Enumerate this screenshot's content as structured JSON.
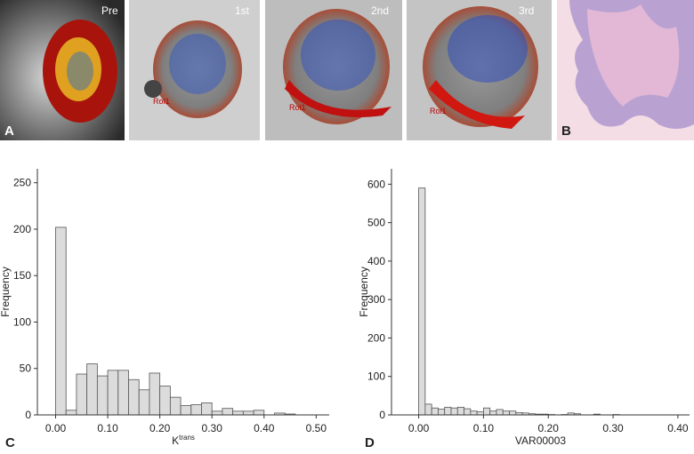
{
  "panels": {
    "a": {
      "letter": "A",
      "slices": [
        "Pre",
        "1st",
        "2nd",
        "3rd"
      ],
      "roi_labels": [
        "Roi1",
        "Roi1",
        "Roi1"
      ]
    },
    "b": {
      "letter": "B"
    }
  },
  "chart_data": [
    {
      "type": "histogram",
      "panel_letter": "C",
      "y_label": "Frequency",
      "x_label": "K",
      "x_label_sup": "trans",
      "color": "#dcdcdc",
      "bins": [
        0.0,
        0.02,
        0.04,
        0.06,
        0.08,
        0.1,
        0.12,
        0.14,
        0.16,
        0.18,
        0.2,
        0.22,
        0.24,
        0.26,
        0.28,
        0.3,
        0.32,
        0.34,
        0.36,
        0.38,
        0.4,
        0.42,
        0.44,
        0.46
      ],
      "values": [
        202,
        5,
        44,
        55,
        42,
        48,
        48,
        38,
        27,
        45,
        31,
        19,
        10,
        11,
        13,
        4,
        7,
        4,
        4,
        5,
        0,
        2,
        1
      ],
      "xlim": [
        -0.035,
        0.525
      ],
      "ylim": [
        0,
        265
      ],
      "xticks": [
        {
          "value": 0,
          "label": "0.00"
        },
        {
          "value": 0.1,
          "label": "0.10"
        },
        {
          "value": 0.2,
          "label": "0.20"
        },
        {
          "value": 0.3,
          "label": "0.30"
        },
        {
          "value": 0.4,
          "label": "0.40"
        },
        {
          "value": 0.5,
          "label": "0.50"
        }
      ],
      "yticks": [
        0,
        50,
        100,
        150,
        200,
        250
      ]
    },
    {
      "type": "histogram",
      "panel_letter": "D",
      "y_label": "Frequency",
      "x_label": "VAR00003",
      "color": "#dcdcdc",
      "bins": [
        0.0,
        0.01,
        0.02,
        0.03,
        0.04,
        0.05,
        0.06,
        0.07,
        0.08,
        0.09,
        0.1,
        0.11,
        0.12,
        0.13,
        0.14,
        0.15,
        0.16,
        0.17,
        0.18,
        0.19,
        0.2,
        0.21,
        0.22,
        0.23,
        0.24,
        0.25,
        0.26,
        0.27,
        0.28,
        0.29,
        0.3,
        0.31
      ],
      "values": [
        590,
        28,
        18,
        15,
        20,
        18,
        20,
        16,
        10,
        8,
        18,
        10,
        14,
        10,
        10,
        6,
        5,
        3,
        2,
        2,
        1,
        0,
        1,
        5,
        3,
        0,
        0,
        2,
        0,
        0,
        1
      ],
      "xlim": [
        -0.042,
        0.418
      ],
      "ylim": [
        0,
        640
      ],
      "xticks": [
        {
          "value": 0,
          "label": "0.00"
        },
        {
          "value": 0.1,
          "label": "0.10"
        },
        {
          "value": 0.2,
          "label": "0.20"
        },
        {
          "value": 0.3,
          "label": "0.30"
        },
        {
          "value": 0.4,
          "label": "0.40"
        }
      ],
      "yticks": [
        0,
        100,
        200,
        300,
        400,
        500,
        600
      ]
    }
  ]
}
